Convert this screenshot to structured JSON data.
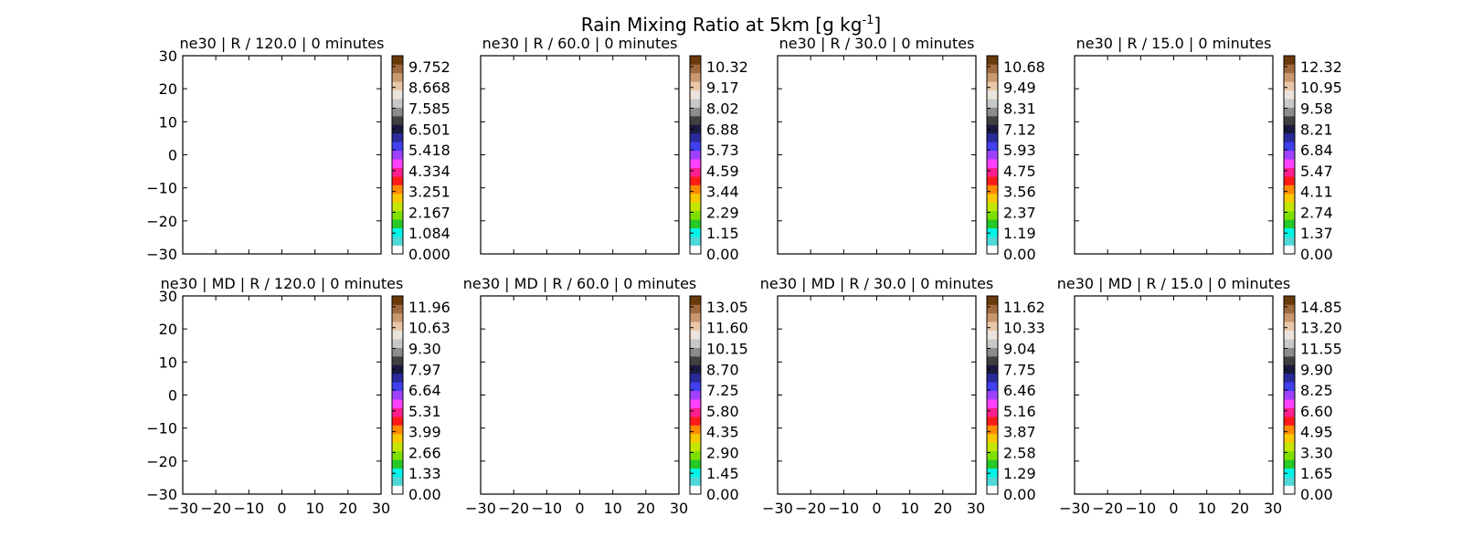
{
  "figure": {
    "title_main": "Rain Mixing Ratio at 5km [g kg",
    "title_sup": "-1",
    "title_end": "]"
  },
  "colormap": [
    "#ffffff",
    "#4fd8d8",
    "#00f5e6",
    "#26c926",
    "#7fe000",
    "#c4e600",
    "#f7c800",
    "#ff8a00",
    "#ff1a1a",
    "#ff1f8f",
    "#ff40ff",
    "#a040ff",
    "#4040f0",
    "#2a2a9a",
    "#1a1a40",
    "#404040",
    "#8c8c8c",
    "#c8c8c8",
    "#ece4dc",
    "#e8c8a8",
    "#c89870",
    "#a06a40",
    "#6a3a0a"
  ],
  "chart_data": [
    {
      "type": "heatmap",
      "title": "ne30 | R / 120.0 | 0 minutes",
      "xlim": [
        -30,
        30
      ],
      "ylim": [
        -30,
        30
      ],
      "xticks": [
        "-30",
        "-20",
        "-10",
        "0",
        "10",
        "20",
        "30"
      ],
      "yticks": [
        "-30",
        "-20",
        "-10",
        "0",
        "10",
        "20",
        "30"
      ],
      "show_xticklabels": false,
      "show_yticklabels": true,
      "colorbar_ticks": [
        "0.000",
        "1.084",
        "2.167",
        "3.251",
        "4.334",
        "5.418",
        "6.501",
        "7.585",
        "8.668",
        "9.752"
      ],
      "data": []
    },
    {
      "type": "heatmap",
      "title": "ne30 | R / 60.0 | 0 minutes",
      "xlim": [
        -30,
        30
      ],
      "ylim": [
        -30,
        30
      ],
      "xticks": [
        "-30",
        "-20",
        "-10",
        "0",
        "10",
        "20",
        "30"
      ],
      "yticks": [
        "-30",
        "-20",
        "-10",
        "0",
        "10",
        "20",
        "30"
      ],
      "show_xticklabels": false,
      "show_yticklabels": false,
      "colorbar_ticks": [
        "0.00",
        "1.15",
        "2.29",
        "3.44",
        "4.59",
        "5.73",
        "6.88",
        "8.02",
        "9.17",
        "10.32"
      ],
      "data": []
    },
    {
      "type": "heatmap",
      "title": "ne30 | R / 30.0 | 0 minutes",
      "xlim": [
        -30,
        30
      ],
      "ylim": [
        -30,
        30
      ],
      "xticks": [
        "-30",
        "-20",
        "-10",
        "0",
        "10",
        "20",
        "30"
      ],
      "yticks": [
        "-30",
        "-20",
        "-10",
        "0",
        "10",
        "20",
        "30"
      ],
      "show_xticklabels": false,
      "show_yticklabels": false,
      "colorbar_ticks": [
        "0.00",
        "1.19",
        "2.37",
        "3.56",
        "4.75",
        "5.93",
        "7.12",
        "8.31",
        "9.49",
        "10.68"
      ],
      "data": []
    },
    {
      "type": "heatmap",
      "title": "ne30 | R / 15.0 | 0 minutes",
      "xlim": [
        -30,
        30
      ],
      "ylim": [
        -30,
        30
      ],
      "xticks": [
        "-30",
        "-20",
        "-10",
        "0",
        "10",
        "20",
        "30"
      ],
      "yticks": [
        "-30",
        "-20",
        "-10",
        "0",
        "10",
        "20",
        "30"
      ],
      "show_xticklabels": false,
      "show_yticklabels": false,
      "colorbar_ticks": [
        "0.00",
        "1.37",
        "2.74",
        "4.11",
        "5.47",
        "6.84",
        "8.21",
        "9.58",
        "10.95",
        "12.32"
      ],
      "data": []
    },
    {
      "type": "heatmap",
      "title": "ne30 | MD | R / 120.0 | 0 minutes",
      "xlim": [
        -30,
        30
      ],
      "ylim": [
        -30,
        30
      ],
      "xticks": [
        "-30",
        "-20",
        "-10",
        "0",
        "10",
        "20",
        "30"
      ],
      "yticks": [
        "-30",
        "-20",
        "-10",
        "0",
        "10",
        "20",
        "30"
      ],
      "show_xticklabels": true,
      "show_yticklabels": true,
      "colorbar_ticks": [
        "0.00",
        "1.33",
        "2.66",
        "3.99",
        "5.31",
        "6.64",
        "7.97",
        "9.30",
        "10.63",
        "11.96"
      ],
      "data": []
    },
    {
      "type": "heatmap",
      "title": "ne30 | MD | R / 60.0 | 0 minutes",
      "xlim": [
        -30,
        30
      ],
      "ylim": [
        -30,
        30
      ],
      "xticks": [
        "-30",
        "-20",
        "-10",
        "0",
        "10",
        "20",
        "30"
      ],
      "yticks": [
        "-30",
        "-20",
        "-10",
        "0",
        "10",
        "20",
        "30"
      ],
      "show_xticklabels": true,
      "show_yticklabels": false,
      "colorbar_ticks": [
        "0.00",
        "1.45",
        "2.90",
        "4.35",
        "5.80",
        "7.25",
        "8.70",
        "10.15",
        "11.60",
        "13.05"
      ],
      "data": []
    },
    {
      "type": "heatmap",
      "title": "ne30 | MD | R / 30.0 | 0 minutes",
      "xlim": [
        -30,
        30
      ],
      "ylim": [
        -30,
        30
      ],
      "xticks": [
        "-30",
        "-20",
        "-10",
        "0",
        "10",
        "20",
        "30"
      ],
      "yticks": [
        "-30",
        "-20",
        "-10",
        "0",
        "10",
        "20",
        "30"
      ],
      "show_xticklabels": true,
      "show_yticklabels": false,
      "colorbar_ticks": [
        "0.00",
        "1.29",
        "2.58",
        "3.87",
        "5.16",
        "6.46",
        "7.75",
        "9.04",
        "10.33",
        "11.62"
      ],
      "data": []
    },
    {
      "type": "heatmap",
      "title": "ne30 | MD | R / 15.0 | 0 minutes",
      "xlim": [
        -30,
        30
      ],
      "ylim": [
        -30,
        30
      ],
      "xticks": [
        "-30",
        "-20",
        "-10",
        "0",
        "10",
        "20",
        "30"
      ],
      "yticks": [
        "-30",
        "-20",
        "-10",
        "0",
        "10",
        "20",
        "30"
      ],
      "show_xticklabels": true,
      "show_yticklabels": false,
      "colorbar_ticks": [
        "0.00",
        "1.65",
        "3.30",
        "4.95",
        "6.60",
        "8.25",
        "9.90",
        "11.55",
        "13.20",
        "14.85"
      ],
      "data": []
    }
  ]
}
